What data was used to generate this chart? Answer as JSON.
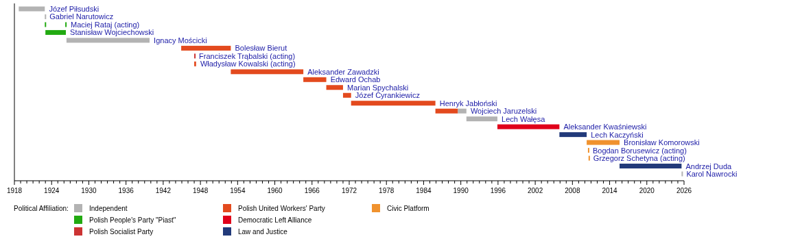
{
  "chart_data": {
    "type": "bar",
    "orientation": "horizontal",
    "legend": "bottom",
    "legend_title": "Political Affiliation:",
    "categories": [
      "Józef Piłsudski",
      "Gabriel Narutowicz",
      "Maciej Rataj (acting)",
      "Stanisław Wojciechowski",
      "Ignacy Mościcki",
      "Bolesław Bierut",
      "Franciszek Trąbalski (acting)",
      "Władysław Kowalski (acting)",
      "Aleksander Zawadzki",
      "Edward Ochab",
      "Marian Spychalski",
      "Józef Cyrankiewicz",
      "Henryk Jabłoński",
      "Wojciech Jaruzelski",
      "Lech Wałęsa",
      "Aleksander Kwaśniewski",
      "Lech Kaczyński",
      "Bronisław Komorowski",
      "Bogdan Borusewicz (acting)",
      "Grzegorz Schetyna (acting)",
      "Andrzej Duda",
      "Karol Nawrocki"
    ],
    "series": [
      {
        "name": "Independent",
        "color": "#b3b3b3",
        "base": [
          1918.7,
          1922.9,
          null,
          null,
          1926.4,
          null,
          null,
          null,
          null,
          null,
          null,
          null,
          null,
          1989.5,
          1990.9,
          null,
          null,
          null,
          null,
          null,
          null,
          2025.6
        ],
        "values": [
          4.2,
          0.1,
          null,
          null,
          13.4,
          null,
          null,
          null,
          null,
          null,
          null,
          null,
          null,
          1.4,
          5.0,
          null,
          null,
          null,
          null,
          null,
          null,
          0.1
        ]
      },
      {
        "name": "Polish People's Party \"Piast\"",
        "color": "#22aa11",
        "base": [
          null,
          null,
          1922.9,
          1923.0,
          null,
          null,
          null,
          null,
          null,
          null,
          null,
          null,
          null,
          null,
          null,
          null,
          null,
          null,
          null,
          null,
          null,
          null
        ],
        "values": [
          null,
          null,
          0.2,
          3.3,
          null,
          null,
          null,
          null,
          null,
          null,
          null,
          null,
          null,
          null,
          null,
          null,
          null,
          null,
          null,
          null,
          null,
          null
        ]
      },
      {
        "color": "#22aa11",
        "base": [
          null,
          null,
          1926.2,
          null,
          null,
          null,
          null,
          null,
          null,
          null,
          null,
          null,
          null,
          null,
          null,
          null,
          null,
          null,
          null,
          null,
          null,
          null
        ],
        "values": [
          null,
          null,
          0.2,
          null,
          null,
          null,
          null,
          null,
          null,
          null,
          null,
          null,
          null,
          null,
          null,
          null,
          null,
          null,
          null,
          null,
          null,
          null
        ]
      },
      {
        "name": "Polish Socialist Party",
        "color": "#cc3333",
        "base": [
          null,
          null,
          null,
          null,
          null,
          null,
          1947.0,
          null,
          null,
          null,
          null,
          null,
          null,
          null,
          null,
          null,
          null,
          null,
          null,
          null,
          null,
          null
        ],
        "values": [
          null,
          null,
          null,
          null,
          null,
          null,
          0.1,
          null,
          null,
          null,
          null,
          null,
          null,
          null,
          null,
          null,
          null,
          null,
          null,
          null,
          null,
          null
        ]
      },
      {
        "name": "Polish United Workers' Party",
        "color": "#e34a1e",
        "base": [
          null,
          null,
          null,
          null,
          null,
          1944.9,
          null,
          1947.0,
          1952.9,
          1964.6,
          1968.3,
          1971.0,
          1972.3,
          1985.9,
          null,
          null,
          null,
          null,
          null,
          null,
          null,
          null
        ],
        "values": [
          null,
          null,
          null,
          null,
          null,
          8.0,
          null,
          0.3,
          11.7,
          3.7,
          2.7,
          1.3,
          13.6,
          3.6,
          null,
          null,
          null,
          null,
          null,
          null,
          null,
          null
        ]
      },
      {
        "name": "Democratic Left Alliance",
        "color": "#e0001a",
        "base": [
          null,
          null,
          null,
          null,
          null,
          null,
          null,
          null,
          null,
          null,
          null,
          null,
          null,
          null,
          null,
          1995.9,
          null,
          null,
          null,
          null,
          null,
          null
        ],
        "values": [
          null,
          null,
          null,
          null,
          null,
          null,
          null,
          null,
          null,
          null,
          null,
          null,
          null,
          null,
          null,
          10.0,
          null,
          null,
          null,
          null,
          null,
          null
        ]
      },
      {
        "name": "Law and Justice",
        "color": "#223a7a",
        "base": [
          null,
          null,
          null,
          null,
          null,
          null,
          null,
          null,
          null,
          null,
          null,
          null,
          null,
          null,
          null,
          null,
          2005.9,
          null,
          null,
          null,
          2015.6,
          null
        ],
        "values": [
          null,
          null,
          null,
          null,
          null,
          null,
          null,
          null,
          null,
          null,
          null,
          null,
          null,
          null,
          null,
          null,
          4.4,
          null,
          null,
          null,
          10.0,
          null
        ]
      },
      {
        "name": "Civic Platform",
        "color": "#f0922e",
        "base": [
          null,
          null,
          null,
          null,
          null,
          null,
          null,
          null,
          null,
          null,
          null,
          null,
          null,
          null,
          null,
          null,
          null,
          2010.3,
          2010.5,
          2010.6,
          null,
          null
        ],
        "values": [
          null,
          null,
          null,
          null,
          null,
          null,
          null,
          null,
          null,
          null,
          null,
          null,
          null,
          null,
          null,
          null,
          null,
          5.3,
          0.1,
          0.1,
          null,
          null
        ]
      }
    ],
    "xlim": [
      1918,
      2026
    ],
    "xticks": [
      1918,
      {
        "value": 1919,
        "label": null
      },
      {
        "value": 1920,
        "label": null
      },
      {
        "value": 1921,
        "label": null
      },
      {
        "value": 1922,
        "label": null
      },
      {
        "value": 1923,
        "label": null
      },
      1924,
      {
        "value": 1925,
        "label": null
      },
      {
        "value": 1926,
        "label": null
      },
      {
        "value": 1927,
        "label": null
      },
      {
        "value": 1928,
        "label": null
      },
      {
        "value": 1929,
        "label": null
      },
      1930,
      {
        "value": 1931,
        "label": null
      },
      {
        "value": 1932,
        "label": null
      },
      {
        "value": 1933,
        "label": null
      },
      {
        "value": 1934,
        "label": null
      },
      {
        "value": 1935,
        "label": null
      },
      1936,
      {
        "value": 1937,
        "label": null
      },
      {
        "value": 1938,
        "label": null
      },
      {
        "value": 1939,
        "label": null
      },
      {
        "value": 1940,
        "label": null
      },
      {
        "value": 1941,
        "label": null
      },
      1942,
      {
        "value": 1943,
        "label": null
      },
      {
        "value": 1944,
        "label": null
      },
      {
        "value": 1945,
        "label": null
      },
      {
        "value": 1946,
        "label": null
      },
      {
        "value": 1947,
        "label": null
      },
      1948,
      {
        "value": 1949,
        "label": null
      },
      {
        "value": 1950,
        "label": null
      },
      {
        "value": 1951,
        "label": null
      },
      {
        "value": 1952,
        "label": null
      },
      {
        "value": 1953,
        "label": null
      },
      1954,
      {
        "value": 1955,
        "label": null
      },
      {
        "value": 1956,
        "label": null
      },
      {
        "value": 1957,
        "label": null
      },
      {
        "value": 1958,
        "label": null
      },
      {
        "value": 1959,
        "label": null
      },
      1960,
      {
        "value": 1961,
        "label": null
      },
      {
        "value": 1962,
        "label": null
      },
      {
        "value": 1963,
        "label": null
      },
      {
        "value": 1964,
        "label": null
      },
      {
        "value": 1965,
        "label": null
      },
      1966,
      {
        "value": 1967,
        "label": null
      },
      {
        "value": 1968,
        "label": null
      },
      {
        "value": 1969,
        "label": null
      },
      {
        "value": 1970,
        "label": null
      },
      {
        "value": 1971,
        "label": null
      },
      1972,
      {
        "value": 1973,
        "label": null
      },
      {
        "value": 1974,
        "label": null
      },
      {
        "value": 1975,
        "label": null
      },
      {
        "value": 1976,
        "label": null
      },
      {
        "value": 1977,
        "label": null
      },
      1978,
      {
        "value": 1979,
        "label": null
      },
      {
        "value": 1980,
        "label": null
      },
      {
        "value": 1981,
        "label": null
      },
      {
        "value": 1982,
        "label": null
      },
      {
        "value": 1983,
        "label": null
      },
      1984,
      {
        "value": 1985,
        "label": null
      },
      {
        "value": 1986,
        "label": null
      },
      {
        "value": 1987,
        "label": null
      },
      {
        "value": 1988,
        "label": null
      },
      {
        "value": 1989,
        "label": null
      },
      1990,
      {
        "value": 1991,
        "label": null
      },
      {
        "value": 1992,
        "label": null
      },
      {
        "value": 1993,
        "label": null
      },
      {
        "value": 1994,
        "label": null
      },
      {
        "value": 1995,
        "label": null
      },
      1996,
      {
        "value": 1997,
        "label": null
      },
      {
        "value": 1998,
        "label": null
      },
      {
        "value": 1999,
        "label": null
      },
      {
        "value": 2000,
        "label": null
      },
      {
        "value": 2001,
        "label": null
      },
      2002,
      {
        "value": 2003,
        "label": null
      },
      {
        "value": 2004,
        "label": null
      },
      {
        "value": 2005,
        "label": null
      },
      {
        "value": 2006,
        "label": null
      },
      {
        "value": 2007,
        "label": null
      },
      2008,
      {
        "value": 2009,
        "label": null
      },
      {
        "value": 2010,
        "label": null
      },
      {
        "value": 2011,
        "label": null
      },
      {
        "value": 2012,
        "label": null
      },
      {
        "value": 2013,
        "label": null
      },
      2014,
      {
        "value": 2015,
        "label": null
      },
      {
        "value": 2016,
        "label": null
      },
      {
        "value": 2017,
        "label": null
      },
      {
        "value": 2018,
        "label": null
      },
      {
        "value": 2019,
        "label": null
      },
      2020,
      {
        "value": 2021,
        "label": null
      },
      {
        "value": 2022,
        "label": null
      },
      {
        "value": 2023,
        "label": null
      },
      {
        "value": 2024,
        "label": null
      },
      {
        "value": 2025,
        "label": null
      },
      2026
    ]
  }
}
